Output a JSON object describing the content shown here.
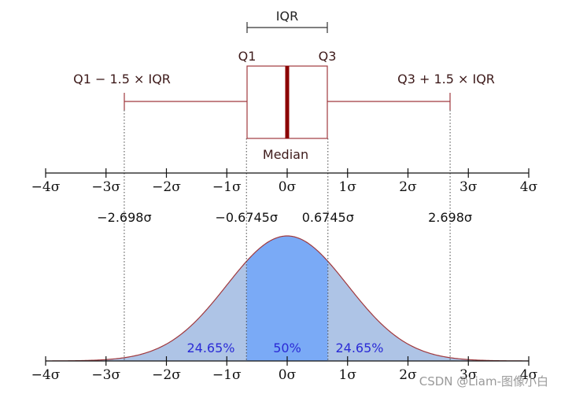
{
  "box_plot": {
    "iqr_label": "IQR",
    "q1_label": "Q1",
    "q3_label": "Q3",
    "lower_whisker_label": "Q1 − 1.5 × IQR",
    "upper_whisker_label": "Q3 + 1.5 × IQR",
    "median_label": "Median"
  },
  "axis_ticks": [
    "−4σ",
    "−3σ",
    "−2σ",
    "−1σ",
    "0σ",
    "1σ",
    "2σ",
    "3σ",
    "4σ"
  ],
  "tick_values": [
    -4,
    -3,
    -2,
    -1,
    0,
    1,
    2,
    3,
    4
  ],
  "sigma_markers": [
    {
      "value": -2.698,
      "label": "−2.698σ"
    },
    {
      "value": -0.6745,
      "label": "−0.6745σ"
    },
    {
      "value": 0.6745,
      "label": "0.6745σ"
    },
    {
      "value": 2.698,
      "label": "2.698σ"
    }
  ],
  "distribution": {
    "left_percent": "24.65%",
    "center_percent": "50%",
    "right_percent": "24.65%"
  },
  "colors": {
    "box_line": "#a0393e",
    "median_line": "#8b0000",
    "curve_line": "#a0393e",
    "fill_center": "#7aaaf6",
    "fill_sides": "#aec4e6",
    "percent_text": "#2b2bd6"
  },
  "watermark": "CSDN @Liam-图像小白"
}
